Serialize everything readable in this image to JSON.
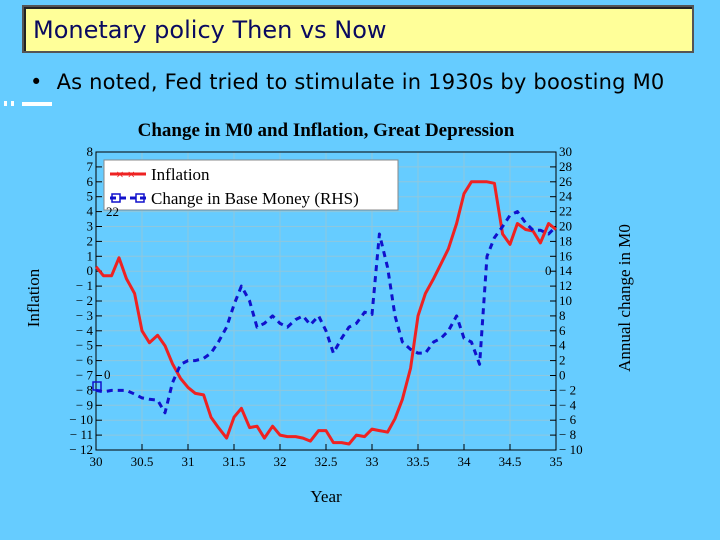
{
  "slide": {
    "title": "Monetary policy Then vs Now",
    "bullet_marker": "•",
    "bullet": "As noted, Fed tried to stimulate in 1930s by boosting M0"
  },
  "colors": {
    "background": "#66ccff",
    "title_box": "#ffff99",
    "inflation": "#ee2222",
    "money": "#1111cc"
  },
  "chart_data": {
    "type": "line",
    "title": "Change in M0 and Inflation, Great Depression",
    "xlabel": "Year",
    "ylabel": "Inflation",
    "ylabel_right": "Annual change in M0",
    "xlim": [
      30,
      35
    ],
    "ylim": [
      -12,
      8
    ],
    "ylim_right": [
      -10,
      30
    ],
    "xticks": [
      "30",
      "30.5",
      "31",
      "31.5",
      "32",
      "32.5",
      "33",
      "33.5",
      "34",
      "34.5",
      "35"
    ],
    "yticks_left": [
      "8",
      "7",
      "6",
      "5",
      "4",
      "3",
      "2",
      "1",
      "0",
      "− 1",
      "− 2",
      "− 3",
      "− 4",
      "− 5",
      "− 6",
      "− 7",
      "− 8",
      "− 9",
      "− 10",
      "− 11",
      "− 12"
    ],
    "yticks_right": [
      "30",
      "28",
      "26",
      "24",
      "22",
      "20",
      "18",
      "16",
      "14",
      "12",
      "10",
      "8",
      "6",
      "4",
      "2",
      "0",
      "− 2",
      "− 4",
      "− 6",
      "− 8",
      "− 10"
    ],
    "stray_labels": [
      {
        "text": "22",
        "series": "left"
      },
      {
        "text": "0",
        "series": "left"
      },
      {
        "text": "0",
        "series": "right"
      }
    ],
    "series": [
      {
        "name": "Inflation",
        "axis": "left",
        "style": "solid",
        "x": [
          30,
          30.08,
          30.17,
          30.25,
          30.33,
          30.42,
          30.5,
          30.58,
          30.67,
          30.75,
          30.83,
          30.92,
          31,
          31.08,
          31.17,
          31.25,
          31.33,
          31.42,
          31.5,
          31.58,
          31.67,
          31.75,
          31.83,
          31.92,
          32,
          32.08,
          32.17,
          32.25,
          32.33,
          32.42,
          32.5,
          32.58,
          32.67,
          32.75,
          32.83,
          32.92,
          33,
          33.08,
          33.17,
          33.25,
          33.33,
          33.42,
          33.5,
          33.58,
          33.67,
          33.75,
          33.83,
          33.92,
          34,
          34.08,
          34.17,
          34.25,
          34.33,
          34.42,
          34.5,
          34.58,
          34.67,
          34.75,
          34.83,
          34.92,
          35
        ],
        "values": [
          0.3,
          -0.3,
          -0.3,
          0.9,
          -0.5,
          -1.5,
          -4.0,
          -4.8,
          -4.3,
          -5.0,
          -6.2,
          -7.2,
          -7.8,
          -8.2,
          -8.3,
          -9.8,
          -10.5,
          -11.2,
          -9.8,
          -9.2,
          -10.5,
          -10.4,
          -11.2,
          -10.4,
          -11.0,
          -11.1,
          -11.1,
          -11.2,
          -11.4,
          -10.7,
          -10.7,
          -11.5,
          -11.5,
          -11.6,
          -11.0,
          -11.1,
          -10.6,
          -10.7,
          -10.8,
          -9.9,
          -8.6,
          -6.5,
          -3.0,
          -1.5,
          -0.5,
          0.5,
          1.5,
          3.2,
          5.2,
          6.0,
          6.0,
          6.0,
          5.9,
          2.5,
          1.8,
          3.2,
          2.8,
          2.7,
          1.9,
          3.2,
          2.8
        ]
      },
      {
        "name": "Change in Base Money (RHS)",
        "axis": "right",
        "style": "dashed",
        "x": [
          30,
          30.08,
          30.17,
          30.25,
          30.33,
          30.42,
          30.5,
          30.58,
          30.67,
          30.75,
          30.83,
          30.92,
          31,
          31.08,
          31.17,
          31.25,
          31.33,
          31.42,
          31.5,
          31.58,
          31.67,
          31.75,
          31.83,
          31.92,
          32,
          32.08,
          32.17,
          32.25,
          32.33,
          32.42,
          32.5,
          32.58,
          32.67,
          32.75,
          32.83,
          32.92,
          33,
          33.08,
          33.17,
          33.25,
          33.33,
          33.42,
          33.5,
          33.58,
          33.67,
          33.75,
          33.83,
          33.92,
          34,
          34.08,
          34.17,
          34.25,
          34.33,
          34.42,
          34.5,
          34.58,
          34.67,
          34.75,
          34.83,
          34.92,
          35
        ],
        "values": [
          -2,
          -2.2,
          -2.0,
          -2.0,
          -2.0,
          -2.5,
          -3.0,
          -3.2,
          -3.3,
          -5.0,
          -1.0,
          1.5,
          2.0,
          2.0,
          2.3,
          3.0,
          4.5,
          6.5,
          9.5,
          12.0,
          10.0,
          6.5,
          7.0,
          8.0,
          7.0,
          6.5,
          7.5,
          8.0,
          6.8,
          8.0,
          6.0,
          3.0,
          5.0,
          6.5,
          7.0,
          8.5,
          8.2,
          19.0,
          14.5,
          8.0,
          4.5,
          3.5,
          3.0,
          3.0,
          4.5,
          5.0,
          6.0,
          8.0,
          5.0,
          4.5,
          1.5,
          16.0,
          18.5,
          20.0,
          21.5,
          22.0,
          20.5,
          19.5,
          19.5,
          19.0,
          20.0
        ]
      }
    ]
  }
}
